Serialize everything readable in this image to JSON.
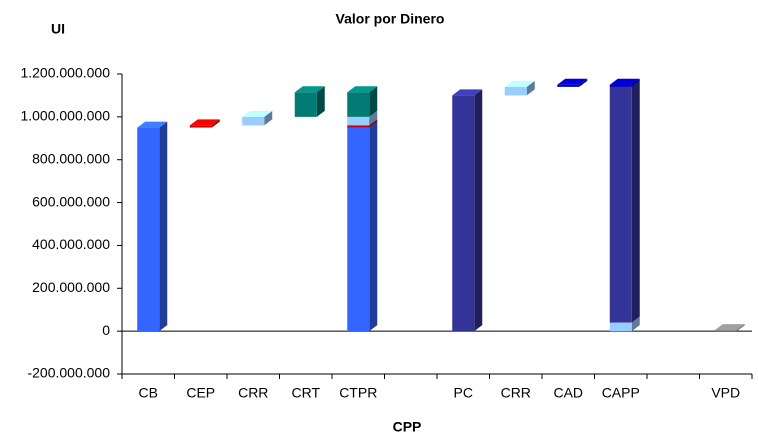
{
  "chart_data": {
    "type": "waterfall",
    "title": "Valor por Dinero",
    "y_label": "UI",
    "x_label": "CPP",
    "categories": [
      "CB",
      "CEP",
      "CRR",
      "CRT",
      "CTPR",
      null,
      "PC",
      "CRR",
      "CAD",
      "CAPP",
      null,
      "VPD"
    ],
    "series": [
      {
        "color": "#3366ff",
        "values": [
          950000000,
          null,
          null,
          null,
          950000000,
          null,
          null,
          null,
          null,
          null,
          null,
          null
        ]
      },
      {
        "color": "#cc0000",
        "values": [
          null,
          10000000,
          null,
          null,
          10000000,
          null,
          null,
          null,
          null,
          null,
          null,
          null
        ]
      },
      {
        "color": "#99ccff",
        "values": [
          null,
          null,
          40000000,
          null,
          40000000,
          null,
          null,
          40000000,
          null,
          40000000,
          null,
          null
        ]
      },
      {
        "color": "#007a73",
        "values": [
          null,
          null,
          null,
          115000000,
          115000000,
          null,
          null,
          null,
          null,
          null,
          null,
          null
        ]
      },
      {
        "color": "#333399",
        "values": [
          null,
          null,
          null,
          null,
          null,
          null,
          1100000000,
          null,
          null,
          1100000000,
          null,
          null
        ]
      },
      {
        "color": "#0000b0",
        "values": [
          null,
          null,
          null,
          null,
          null,
          null,
          null,
          null,
          10000000,
          10000000,
          null,
          null
        ]
      },
      {
        "color": "#808080",
        "values": [
          null,
          null,
          null,
          null,
          null,
          null,
          null,
          null,
          null,
          null,
          null,
          5000000
        ]
      }
    ],
    "ylim": [
      -200000000,
      1200000000
    ],
    "yticks": [
      {
        "value": -200000000,
        "label": "-200.000.000"
      },
      0,
      {
        "value": 200000000,
        "label": "200.000.000"
      },
      {
        "value": 400000000,
        "label": "400.000.000"
      },
      {
        "value": 600000000,
        "label": "600.000.000"
      },
      {
        "value": 800000000,
        "label": "800.000.000"
      },
      {
        "value": 1000000000,
        "label": "1.000.000.000"
      },
      {
        "value": 1200000000,
        "label": "1.200.000.000"
      }
    ],
    "grid": false
  }
}
